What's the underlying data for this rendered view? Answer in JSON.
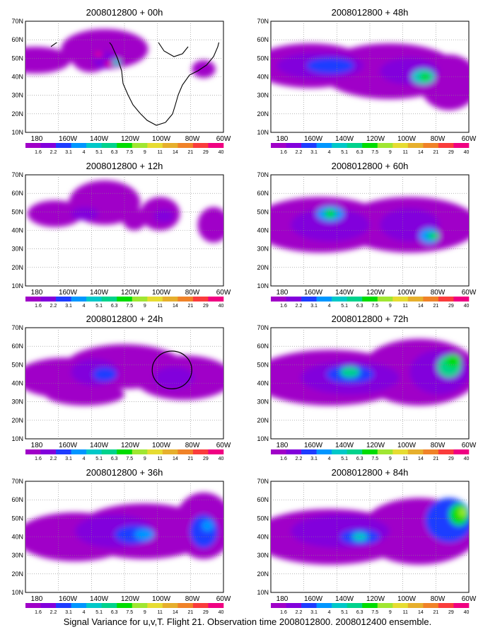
{
  "figure": {
    "caption": "Signal Variance for u,v,T. Flight 21. Observation time 2008012800. 2008012400 ensemble.",
    "y_ticks": [
      "70N",
      "60N",
      "50N",
      "40N",
      "30N",
      "20N",
      "10N"
    ],
    "x_ticks": [
      "180",
      "160W",
      "140W",
      "120W",
      "100W",
      "80W",
      "60W"
    ],
    "colorbar": {
      "labels": [
        "1.6",
        "2.2",
        "3.1",
        "4",
        "5.1",
        "6.3",
        "7.5",
        "9",
        "11",
        "14",
        "21",
        "29",
        "40"
      ],
      "colors": [
        "#a000c8",
        "#8200dc",
        "#1e3cff",
        "#0096ff",
        "#00c8c8",
        "#00d28c",
        "#00dc00",
        "#a0e632",
        "#e6dc32",
        "#e6af2d",
        "#f08228",
        "#fa3c3c",
        "#f00082"
      ]
    },
    "panels": [
      {
        "title": "2008012800 + 00h",
        "blobs": [
          [
            0,
            0.05,
            0.35,
            0.18,
            0.12
          ],
          [
            0,
            0.4,
            0.25,
            0.22,
            0.18
          ],
          [
            0,
            0.33,
            0.32,
            0.1,
            0.14
          ],
          [
            0,
            0.9,
            0.43,
            0.06,
            0.08
          ],
          [
            1,
            0.4,
            0.35,
            0.06,
            0.08
          ],
          [
            4,
            0.46,
            0.37,
            0.02,
            0.03
          ],
          [
            12,
            0.37,
            0.3,
            0.02,
            0.02
          ],
          [
            12,
            0.42,
            0.38,
            0.02,
            0.02
          ]
        ],
        "extras": []
      },
      {
        "title": "2008012800 + 12h",
        "blobs": [
          [
            0,
            0.15,
            0.35,
            0.14,
            0.12
          ],
          [
            0,
            0.4,
            0.25,
            0.18,
            0.2
          ],
          [
            0,
            0.55,
            0.4,
            0.06,
            0.1
          ],
          [
            0,
            0.68,
            0.35,
            0.1,
            0.15
          ],
          [
            0,
            0.95,
            0.45,
            0.08,
            0.16
          ],
          [
            1,
            0.3,
            0.35,
            0.07,
            0.06
          ],
          [
            1,
            0.7,
            0.37,
            0.05,
            0.06
          ]
        ],
        "extras": []
      },
      {
        "title": "2008012800 + 24h",
        "blobs": [
          [
            0,
            0.2,
            0.45,
            0.25,
            0.18
          ],
          [
            0,
            0.5,
            0.35,
            0.3,
            0.2
          ],
          [
            0,
            0.8,
            0.45,
            0.25,
            0.2
          ],
          [
            0,
            0.3,
            0.6,
            0.2,
            0.1
          ],
          [
            1,
            0.35,
            0.4,
            0.12,
            0.12
          ],
          [
            2,
            0.4,
            0.42,
            0.06,
            0.06
          ],
          [
            2,
            0.7,
            0.45,
            0.05,
            0.05
          ],
          [
            1,
            0.75,
            0.45,
            0.1,
            0.1
          ]
        ],
        "extras": [
          "circle"
        ]
      },
      {
        "title": "2008012800 + 36h",
        "blobs": [
          [
            0,
            0.25,
            0.5,
            0.3,
            0.22
          ],
          [
            0,
            0.6,
            0.45,
            0.35,
            0.25
          ],
          [
            0,
            0.9,
            0.4,
            0.15,
            0.3
          ],
          [
            1,
            0.45,
            0.45,
            0.2,
            0.15
          ],
          [
            2,
            0.55,
            0.48,
            0.1,
            0.08
          ],
          [
            3,
            0.6,
            0.48,
            0.05,
            0.05
          ],
          [
            2,
            0.9,
            0.45,
            0.07,
            0.15
          ],
          [
            3,
            0.92,
            0.4,
            0.03,
            0.05
          ]
        ],
        "extras": []
      },
      {
        "title": "2008012800 + 48h",
        "blobs": [
          [
            0,
            0.2,
            0.4,
            0.3,
            0.2
          ],
          [
            0,
            0.6,
            0.45,
            0.35,
            0.25
          ],
          [
            0,
            0.9,
            0.55,
            0.15,
            0.25
          ],
          [
            1,
            0.25,
            0.4,
            0.22,
            0.12
          ],
          [
            1,
            0.7,
            0.45,
            0.15,
            0.12
          ],
          [
            2,
            0.3,
            0.4,
            0.12,
            0.07
          ],
          [
            4,
            0.77,
            0.5,
            0.06,
            0.07
          ],
          [
            6,
            0.78,
            0.5,
            0.03,
            0.04
          ]
        ],
        "extras": []
      },
      {
        "title": "2008012800 + 60h",
        "blobs": [
          [
            0,
            0.25,
            0.45,
            0.35,
            0.25
          ],
          [
            0,
            0.7,
            0.45,
            0.35,
            0.25
          ],
          [
            1,
            0.3,
            0.45,
            0.2,
            0.15
          ],
          [
            1,
            0.7,
            0.45,
            0.15,
            0.15
          ],
          [
            3,
            0.3,
            0.35,
            0.07,
            0.07
          ],
          [
            6,
            0.3,
            0.35,
            0.03,
            0.04
          ],
          [
            3,
            0.8,
            0.55,
            0.05,
            0.07
          ],
          [
            6,
            0.82,
            0.55,
            0.03,
            0.03
          ]
        ],
        "extras": []
      },
      {
        "title": "2008012800 + 72h",
        "blobs": [
          [
            0,
            0.3,
            0.45,
            0.4,
            0.25
          ],
          [
            0,
            0.75,
            0.4,
            0.3,
            0.3
          ],
          [
            1,
            0.4,
            0.45,
            0.25,
            0.15
          ],
          [
            2,
            0.4,
            0.42,
            0.12,
            0.08
          ],
          [
            5,
            0.4,
            0.4,
            0.05,
            0.05
          ],
          [
            1,
            0.85,
            0.4,
            0.15,
            0.2
          ],
          [
            5,
            0.9,
            0.35,
            0.06,
            0.1
          ],
          [
            6,
            0.92,
            0.3,
            0.04,
            0.06
          ]
        ],
        "extras": []
      },
      {
        "title": "2008012800 + 84h",
        "blobs": [
          [
            0,
            0.3,
            0.5,
            0.4,
            0.25
          ],
          [
            0,
            0.75,
            0.45,
            0.3,
            0.3
          ],
          [
            1,
            0.35,
            0.45,
            0.25,
            0.15
          ],
          [
            2,
            0.45,
            0.5,
            0.1,
            0.07
          ],
          [
            4,
            0.45,
            0.5,
            0.04,
            0.04
          ],
          [
            2,
            0.9,
            0.35,
            0.12,
            0.2
          ],
          [
            6,
            0.95,
            0.3,
            0.05,
            0.1
          ],
          [
            7,
            0.97,
            0.28,
            0.02,
            0.04
          ]
        ],
        "extras": []
      }
    ]
  }
}
